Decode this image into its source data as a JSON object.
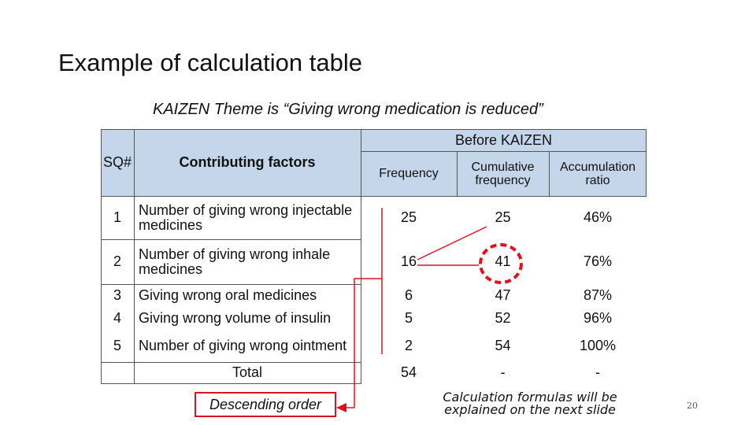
{
  "slide": {
    "title": "Example of calculation table",
    "theme_prefix": "KAIZEN Theme is ",
    "theme_quote": "“Giving wrong medication is reduced”",
    "page_number": "20"
  },
  "table": {
    "header": {
      "sq": "SQ#",
      "factors": "Contributing factors",
      "group": "Before KAIZEN",
      "frequency": "Frequency",
      "cumulative": "Cumulative frequency",
      "ratio": "Accumulation ratio"
    },
    "rows": [
      {
        "sq": "1",
        "factor": "Number of giving wrong injectable medicines",
        "frequency": "25",
        "cumulative": "25",
        "ratio": "46%"
      },
      {
        "sq": "2",
        "factor": "Number of giving wrong inhale medicines",
        "frequency": "16",
        "cumulative": "41",
        "ratio": "76%"
      },
      {
        "sq": "3",
        "factor": "Giving wrong oral medicines",
        "frequency": "6",
        "cumulative": "47",
        "ratio": "87%"
      },
      {
        "sq": "4",
        "factor": "Giving wrong volume of insulin",
        "frequency": "5",
        "cumulative": "52",
        "ratio": "96%"
      },
      {
        "sq": "5",
        "factor": "Number of giving wrong ointment",
        "frequency": "2",
        "cumulative": "54",
        "ratio": "100%"
      }
    ],
    "total": {
      "label": "Total",
      "frequency": "54",
      "cumulative": "-",
      "ratio": "-"
    }
  },
  "annotations": {
    "descending": "Descending order",
    "note": "Calculation formulas will be explained on the next slide",
    "note_line1": "Calculation formulas will be",
    "note_line2": "explained on the next slide",
    "accent_color": "#d9141e",
    "header_color": "#c5d5ea"
  }
}
